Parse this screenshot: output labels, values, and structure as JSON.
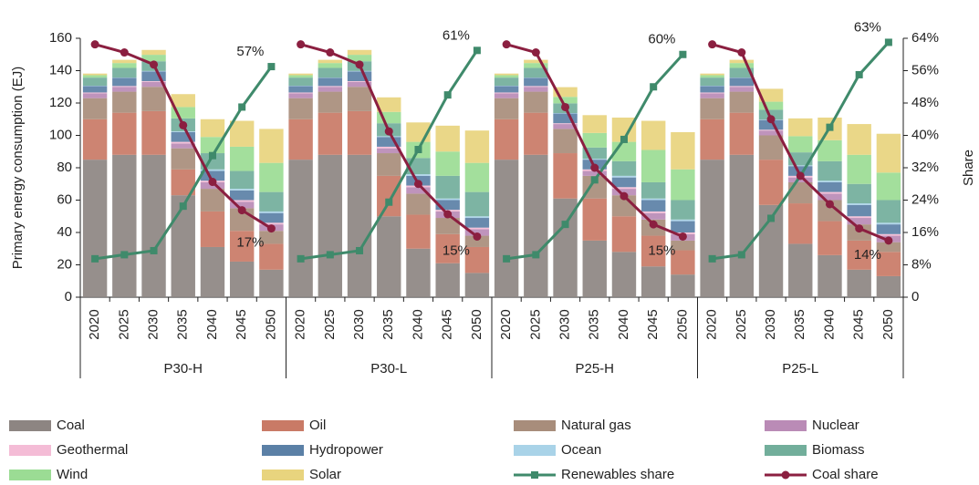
{
  "chart_data": {
    "type": "bar",
    "stacked": true,
    "ylabel": "Primary energy consumption (EJ)",
    "y2label": "Share",
    "ylim": [
      0,
      160
    ],
    "yticks": [
      0,
      20,
      40,
      60,
      80,
      100,
      120,
      140,
      160
    ],
    "y2lim": [
      0,
      64
    ],
    "y2ticks": [
      0,
      {
        "value": 8,
        "label": "8%"
      },
      {
        "value": 16,
        "label": "16%"
      },
      {
        "value": 24,
        "label": "24%"
      },
      {
        "value": 32,
        "label": "32%"
      },
      {
        "value": 40,
        "label": "40%"
      },
      {
        "value": 48,
        "label": "48%"
      },
      {
        "value": 56,
        "label": "56%"
      },
      {
        "value": 64,
        "label": "64%"
      }
    ],
    "groups": [
      "P30-H",
      "P30-L",
      "P25-H",
      "P25-L"
    ],
    "categories": [
      "2020",
      "2025",
      "2030",
      "2035",
      "2040",
      "2045",
      "2050",
      "2020",
      "2025",
      "2030",
      "2035",
      "2040",
      "2045",
      "2050",
      "2020",
      "2025",
      "2030",
      "2035",
      "2040",
      "2045",
      "2050",
      "2020",
      "2025",
      "2030",
      "2035",
      "2040",
      "2045",
      "2050"
    ],
    "series": [
      {
        "name": "Coal",
        "color": "#8d8582",
        "values": [
          85,
          88,
          88,
          63,
          31,
          22,
          17,
          85,
          88,
          88,
          50,
          30,
          21,
          15,
          85,
          88,
          61,
          35,
          28,
          19,
          14,
          85,
          88,
          57,
          33,
          26,
          17,
          13
        ]
      },
      {
        "name": "Oil",
        "color": "#c97a66",
        "values": [
          25,
          26,
          27,
          16,
          22,
          19,
          16,
          25,
          26,
          27,
          25,
          21,
          18,
          16,
          25,
          26,
          28,
          26,
          22,
          19,
          15,
          25,
          26,
          28,
          25,
          21,
          18,
          15
        ]
      },
      {
        "name": "Natural gas",
        "color": "#a88d7b",
        "values": [
          13,
          13,
          15,
          13,
          14,
          14,
          8,
          13,
          13,
          15,
          14,
          13,
          10,
          7,
          13,
          13,
          15,
          14,
          13,
          10,
          6,
          13,
          13,
          15,
          13,
          13,
          10,
          6
        ]
      },
      {
        "name": "Nuclear",
        "color": "#ba8bb6",
        "values": [
          3,
          3,
          3,
          3,
          4,
          4,
          4,
          3,
          3,
          3,
          3,
          4,
          4,
          4,
          3,
          3,
          3,
          3,
          4,
          4,
          4,
          3,
          3,
          3,
          3,
          4,
          4,
          4
        ]
      },
      {
        "name": "Geothermal",
        "color": "#f4bcd6",
        "values": [
          0.5,
          0.5,
          0.5,
          1,
          1,
          1,
          1,
          0.5,
          0.5,
          0.5,
          1,
          1,
          1,
          1,
          0.5,
          0.5,
          0.5,
          1,
          1,
          1,
          1,
          0.5,
          0.5,
          0.5,
          1,
          1,
          1,
          1
        ]
      },
      {
        "name": "Hydropower",
        "color": "#5b80a6",
        "values": [
          4,
          5,
          6,
          6,
          6,
          6,
          6,
          4,
          5,
          6,
          6,
          6,
          6,
          6,
          4,
          5,
          6,
          6,
          6,
          7,
          7,
          4,
          5,
          6,
          6,
          6,
          7,
          6
        ]
      },
      {
        "name": "Ocean",
        "color": "#a9d3e8",
        "values": [
          0.2,
          0.2,
          0.3,
          0.5,
          1,
          1,
          1,
          0.2,
          0.2,
          0.3,
          0.5,
          1,
          1,
          1,
          0.2,
          0.2,
          0.3,
          0.5,
          1,
          1,
          1,
          0.2,
          0.2,
          0.3,
          0.5,
          1,
          1,
          1
        ]
      },
      {
        "name": "Biomass",
        "color": "#72ae9b",
        "values": [
          5,
          6,
          6,
          8,
          10,
          11,
          12,
          5,
          6,
          6,
          8,
          10,
          14,
          15,
          5,
          6,
          6,
          7,
          9,
          10,
          12,
          5,
          6,
          6,
          8,
          12,
          12,
          14
        ]
      },
      {
        "name": "Wind",
        "color": "#9bdc94",
        "values": [
          1.5,
          3,
          4,
          7,
          10,
          15,
          18,
          1.5,
          3,
          4,
          7,
          10,
          15,
          18,
          1.5,
          3,
          4,
          9,
          12,
          20,
          19,
          1.5,
          3,
          5,
          10,
          13,
          18,
          17
        ]
      },
      {
        "name": "Solar",
        "color": "#e8d47e",
        "values": [
          1,
          2,
          3,
          8,
          11,
          16,
          21,
          1,
          2,
          3,
          9,
          12,
          16,
          20,
          1,
          2,
          6,
          11,
          15,
          18,
          23,
          1,
          2,
          8,
          11,
          14,
          19,
          24
        ]
      },
      {
        "name": "Renewables share",
        "color": "#3f8a6b",
        "axis": "y2",
        "marker": "square",
        "values": [
          9.5,
          10.5,
          11.5,
          22.5,
          35,
          47,
          57,
          9.5,
          10.5,
          11.5,
          23.5,
          36.5,
          50,
          61,
          9.5,
          10.5,
          18,
          29,
          39,
          52,
          60,
          9.5,
          10.5,
          19.5,
          30,
          42,
          55,
          63
        ],
        "value_labels": [
          null,
          null,
          null,
          null,
          null,
          null,
          "57%",
          null,
          null,
          null,
          null,
          null,
          null,
          "61%",
          null,
          null,
          null,
          null,
          null,
          null,
          "60%",
          null,
          null,
          null,
          null,
          null,
          null,
          "63%"
        ]
      },
      {
        "name": "Coal share",
        "color": "#8b1f40",
        "axis": "y2",
        "marker": "circle",
        "values": [
          62.5,
          60.5,
          57.5,
          42.5,
          28.5,
          21.5,
          17,
          62.5,
          60.5,
          57.5,
          41,
          28,
          20.5,
          15,
          62.5,
          60.5,
          47,
          32,
          25,
          18,
          15,
          62.5,
          60.5,
          44,
          30,
          23,
          17,
          14
        ],
        "value_labels": [
          null,
          null,
          null,
          null,
          null,
          null,
          "17%",
          null,
          null,
          null,
          null,
          null,
          null,
          "15%",
          null,
          null,
          null,
          null,
          null,
          null,
          "15%",
          null,
          null,
          null,
          null,
          null,
          null,
          "14%"
        ]
      }
    ]
  }
}
